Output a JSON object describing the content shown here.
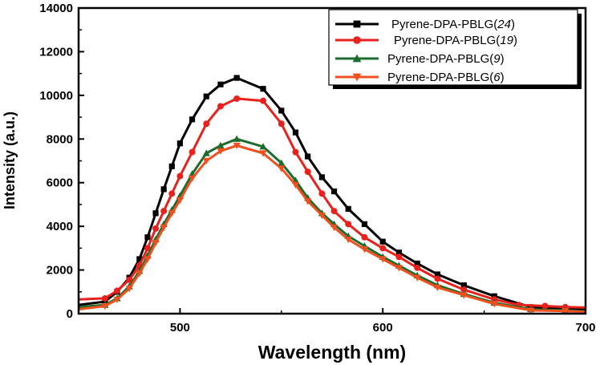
{
  "chart_data": {
    "type": "line",
    "title": "",
    "xlabel": "Wavelength (nm)",
    "ylabel": "Intensity (a.u.)",
    "xlim": [
      450,
      700
    ],
    "ylim": [
      0,
      14000
    ],
    "xticks": [
      500,
      600,
      700
    ],
    "yticks": [
      0,
      2000,
      4000,
      6000,
      8000,
      10000,
      12000,
      14000
    ],
    "grid": false,
    "legend_position": "top-right",
    "series": [
      {
        "name_main": "Pyrene-DPA-PBLG(",
        "name_num": "24",
        "name_close": ")",
        "name": "Pyrene-DPA-PBLG(24)",
        "color": "#000000",
        "marker": "square",
        "x": [
          450,
          463,
          469,
          475,
          480,
          484,
          488,
          492,
          496,
          500,
          506,
          513,
          520,
          528,
          541,
          550,
          557,
          563,
          570,
          576,
          583,
          591,
          600,
          608,
          617,
          627,
          640,
          655,
          673,
          690,
          700
        ],
        "values": [
          400,
          550,
          1000,
          1650,
          2500,
          3500,
          4600,
          5700,
          6750,
          7800,
          8900,
          9950,
          10500,
          10800,
          10300,
          9300,
          8300,
          7200,
          6250,
          5600,
          4800,
          4100,
          3300,
          2800,
          2300,
          1800,
          1300,
          800,
          300,
          200,
          200
        ]
      },
      {
        "name_main": "Pyrene-DPA-PBLG(",
        "name_num": "19",
        "name_close": ")",
        "name": "Pyrene-DPA-PBLG(19)",
        "color": "#e8211c",
        "marker": "circle",
        "x": [
          450,
          463,
          469,
          475,
          480,
          484,
          488,
          492,
          496,
          500,
          506,
          513,
          520,
          528,
          541,
          550,
          557,
          563,
          570,
          576,
          583,
          591,
          600,
          608,
          617,
          627,
          640,
          655,
          667,
          680,
          690,
          700
        ],
        "values": [
          650,
          700,
          1050,
          1550,
          2200,
          3000,
          3900,
          4700,
          5500,
          6300,
          7400,
          8700,
          9500,
          9850,
          9750,
          8700,
          7400,
          6500,
          5500,
          4700,
          4100,
          3500,
          3000,
          2600,
          2100,
          1600,
          1100,
          650,
          400,
          350,
          300,
          280
        ]
      },
      {
        "name_main": "Pyrene-DPA-PBLG(",
        "name_num": "9",
        "name_close": ")",
        "name": "Pyrene-DPA-PBLG(9)",
        "color": "#1e6b30",
        "marker": "triangle-up",
        "x": [
          450,
          463,
          469,
          475,
          480,
          484,
          488,
          492,
          496,
          500,
          506,
          513,
          520,
          528,
          541,
          550,
          557,
          563,
          570,
          576,
          583,
          591,
          600,
          608,
          617,
          627,
          640,
          655,
          673,
          690,
          700
        ],
        "values": [
          300,
          400,
          700,
          1250,
          1950,
          2650,
          3400,
          4100,
          4750,
          5400,
          6400,
          7350,
          7700,
          8000,
          7650,
          6900,
          6100,
          5300,
          4600,
          4100,
          3550,
          3100,
          2600,
          2200,
          1750,
          1300,
          900,
          500,
          200,
          150,
          100
        ]
      },
      {
        "name_main": "Pyrene-DPA-PBLG(",
        "name_num": "6",
        "name_close": ")",
        "name": "Pyrene-DPA-PBLG(6)",
        "color": "#f0501e",
        "marker": "triangle-down",
        "x": [
          450,
          463,
          469,
          475,
          480,
          484,
          488,
          492,
          496,
          500,
          506,
          513,
          520,
          528,
          541,
          550,
          557,
          563,
          570,
          576,
          583,
          591,
          600,
          608,
          617,
          627,
          640,
          655,
          673,
          690,
          700
        ],
        "values": [
          200,
          350,
          650,
          1150,
          1850,
          2500,
          3250,
          3950,
          4600,
          5200,
          6200,
          7000,
          7450,
          7700,
          7350,
          6650,
          5900,
          5150,
          4500,
          3950,
          3400,
          2950,
          2500,
          2100,
          1650,
          1200,
          850,
          450,
          150,
          120,
          80
        ]
      }
    ]
  }
}
